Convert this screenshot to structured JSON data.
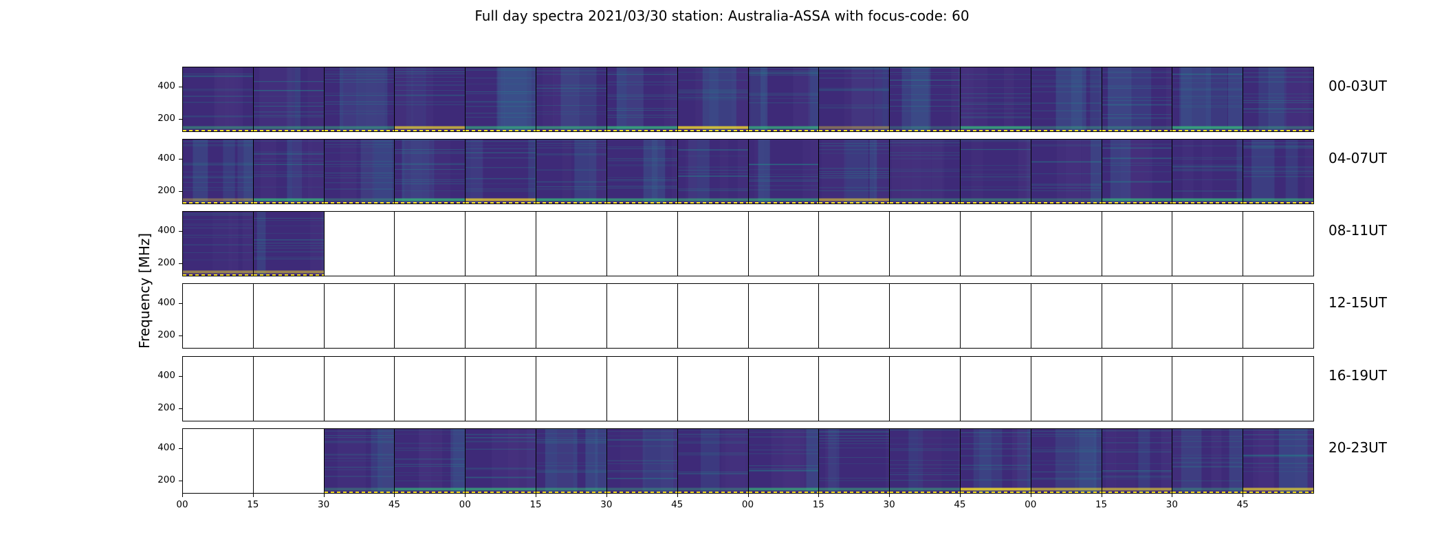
{
  "title": "Full day spectra 2021/03/30 station: Australia-ASSA with focus-code: 60",
  "chart_data": {
    "type": "heatmap",
    "title": "Full day spectra 2021/03/30 station: Australia-ASSA with focus-code: 60",
    "ylabel": "Frequency [MHz]",
    "xlabel": "",
    "colormap": "viridis",
    "ylim": [
      120,
      520
    ],
    "yticks": [
      200,
      400
    ],
    "xtick_labels": [
      "00",
      "15",
      "30",
      "45",
      "00",
      "15",
      "30",
      "45",
      "00",
      "15",
      "30",
      "45",
      "00",
      "15",
      "30",
      "45"
    ],
    "columns_per_row": 16,
    "rows": [
      {
        "label": "00-03UT",
        "has_data": [
          true,
          true,
          true,
          true,
          true,
          true,
          true,
          true,
          true,
          true,
          true,
          true,
          true,
          true,
          true,
          true
        ]
      },
      {
        "label": "04-07UT",
        "has_data": [
          true,
          true,
          true,
          true,
          true,
          true,
          true,
          true,
          true,
          true,
          true,
          true,
          true,
          true,
          true,
          true
        ]
      },
      {
        "label": "08-11UT",
        "has_data": [
          true,
          true,
          false,
          false,
          false,
          false,
          false,
          false,
          false,
          false,
          false,
          false,
          false,
          false,
          false,
          false
        ]
      },
      {
        "label": "12-15UT",
        "has_data": [
          false,
          false,
          false,
          false,
          false,
          false,
          false,
          false,
          false,
          false,
          false,
          false,
          false,
          false,
          false,
          false
        ]
      },
      {
        "label": "16-19UT",
        "has_data": [
          false,
          false,
          false,
          false,
          false,
          false,
          false,
          false,
          false,
          false,
          false,
          false,
          false,
          false,
          false,
          false
        ]
      },
      {
        "label": "20-23UT",
        "has_data": [
          false,
          false,
          true,
          true,
          true,
          true,
          true,
          true,
          true,
          true,
          true,
          true,
          true,
          true,
          true,
          true
        ]
      }
    ]
  },
  "colors": {
    "background": "#3e2a78",
    "band_dark": "#46327e",
    "band_light": "#3b528b",
    "emission_green": "#35b779",
    "emission_yellow": "#fde725",
    "emission_teal": "#21918c"
  }
}
